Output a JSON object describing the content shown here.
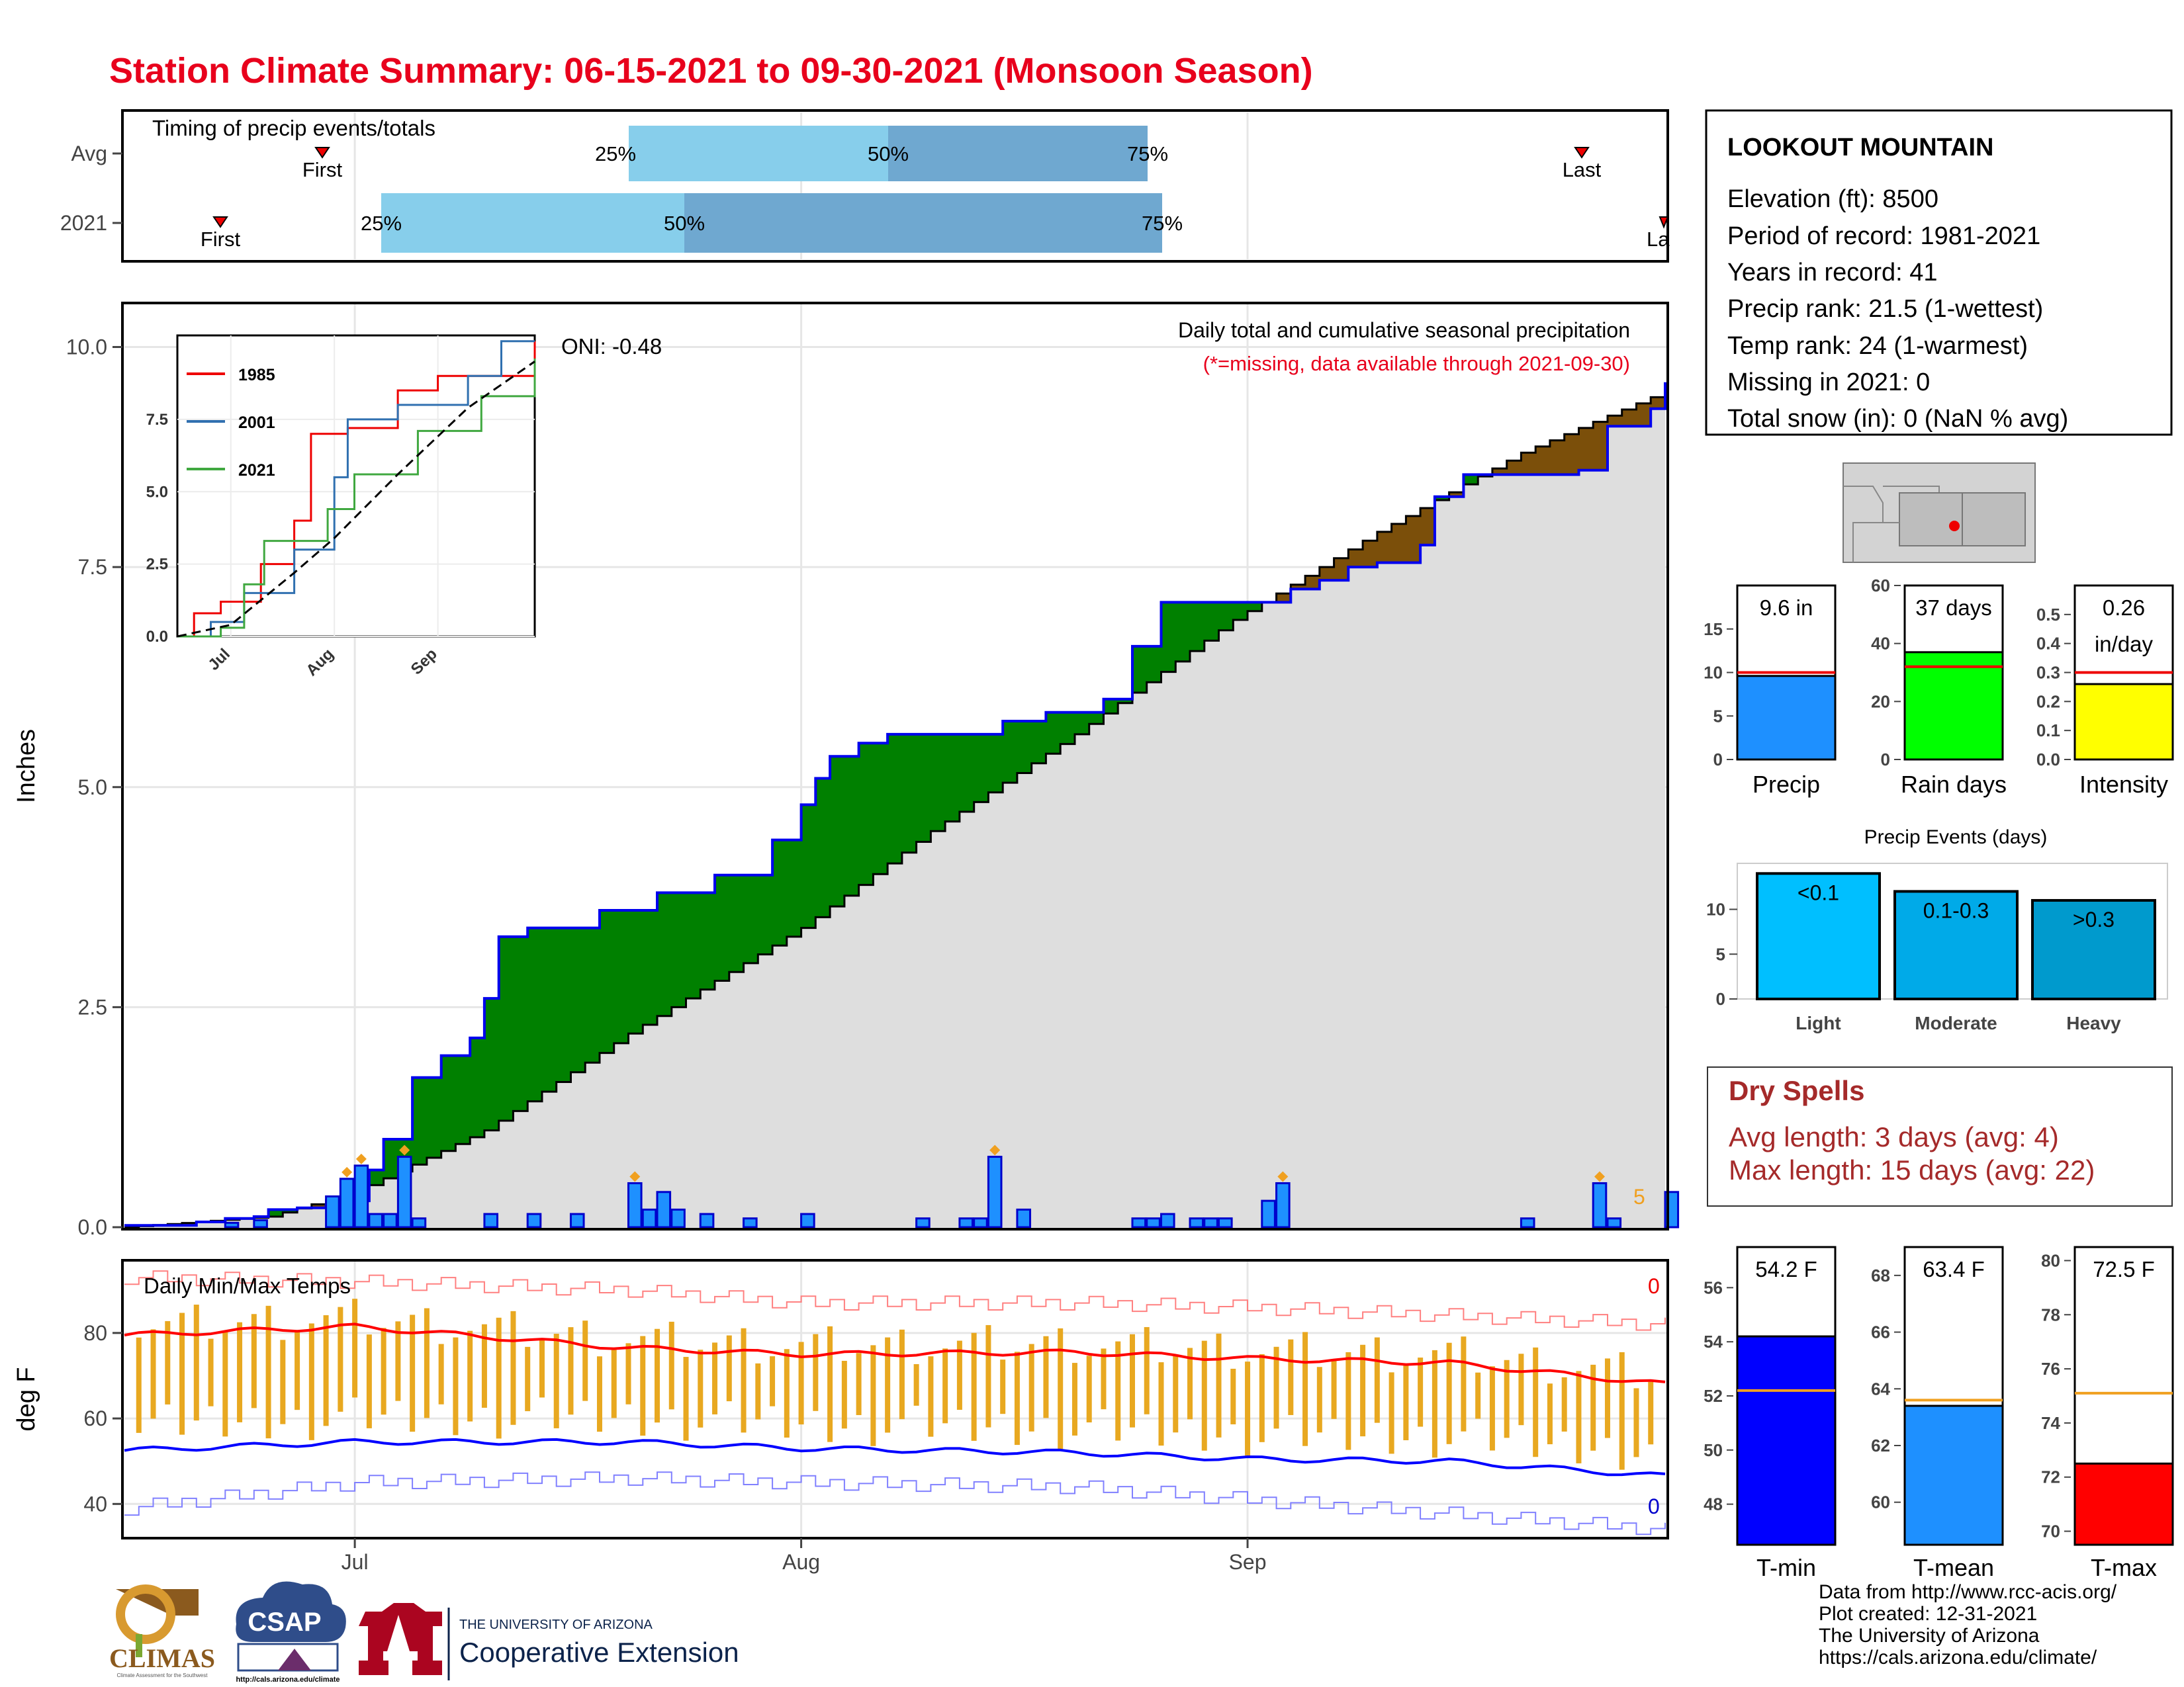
{
  "title": "Station Climate Summary: 06-15-2021 to 09-30-2021 (Monsoon Season)",
  "colors": {
    "title_red": "#e8001c",
    "precip_blue": "#1e90ff",
    "bar_outline": "#0000cc",
    "surplus_green": "#008000",
    "deficit_brown": "#7b4f0a",
    "normal_fill": "#dedede",
    "timing_light": "#87ceeb",
    "timing_dark": "#6fa8d0",
    "tmax_red": "#ff0000",
    "tmin_blue": "#0000ff",
    "temp_range_orange": "#e8a820",
    "dry_spell_text": "#a52a2a"
  },
  "timing": {
    "title": "Timing of precip events/totals",
    "rows": [
      {
        "label": "Avg",
        "first_label": "First",
        "last_label": "Last",
        "p25": "25%",
        "p50": "50%",
        "p75": "75%"
      },
      {
        "label": "2021",
        "first_label": "First",
        "last_label": "La",
        "p25": "25%",
        "p50": "50%",
        "p75": "75%"
      }
    ]
  },
  "main_panel": {
    "ylabel": "Inches",
    "yticks": [
      "0.0",
      "2.5",
      "5.0",
      "7.5",
      "10.0"
    ],
    "subtitle": "Daily total and cumulative seasonal precipitation",
    "missing_note": "(*=missing, data available through 2021-09-30)",
    "oni": "ONI: -0.48",
    "missing_count": "5"
  },
  "inset": {
    "yticks": [
      "0.0",
      "2.5",
      "5.0",
      "7.5"
    ],
    "xticks": [
      "Jul",
      "Aug",
      "Sep"
    ],
    "legend": [
      "1985",
      "2001",
      "2021"
    ]
  },
  "temp_panel": {
    "title": "Daily Min/Max Temps",
    "ylabel": "deg F",
    "yticks": [
      "40",
      "60",
      "80"
    ],
    "count_top": "0",
    "count_bottom": "0",
    "xticks": [
      "Jul",
      "Aug",
      "Sep"
    ]
  },
  "station": {
    "name": "LOOKOUT MOUNTAIN",
    "lines": [
      "Elevation (ft): 8500",
      "Period of record: 1981-2021",
      "Years in record: 41",
      "Precip rank: 21.5 (1-wettest)",
      "Temp rank: 24 (1-warmest)",
      "Missing in 2021: 0",
      "Total snow (in): 0 (NaN % avg)"
    ]
  },
  "summary_bars": [
    {
      "label": "Precip",
      "value_label": "9.6 in",
      "value": 9.6,
      "avg": 10,
      "ymax": 20,
      "yticks": [
        "0",
        "5",
        "10",
        "15"
      ]
    },
    {
      "label": "Rain days",
      "value_label": "37 days",
      "value": 37,
      "avg": 32,
      "ymax": 60,
      "yticks": [
        "0",
        "20",
        "40",
        "60"
      ]
    },
    {
      "label": "Intensity",
      "value_label": "0.26",
      "value_label2": "in/day",
      "value": 0.26,
      "avg": 0.3,
      "ymax": 0.6,
      "yticks": [
        "0.0",
        "0.1",
        "0.2",
        "0.3",
        "0.4",
        "0.5"
      ]
    }
  ],
  "precip_events": {
    "title": "Precip Events (days)",
    "yticks": [
      "0",
      "5",
      "10"
    ],
    "bars": [
      {
        "category": "Light",
        "label": "<0.1",
        "value": 14
      },
      {
        "category": "Moderate",
        "label": "0.1-0.3",
        "value": 12
      },
      {
        "category": "Heavy",
        "label": ">0.3",
        "value": 11
      }
    ]
  },
  "dry_spells": {
    "title": "Dry Spells",
    "avg_length": "Avg length: 3 days (avg: 4)",
    "max_length": "Max length: 15 days (avg: 22)"
  },
  "temp_bars": [
    {
      "label": "T-min",
      "value_label": "54.2 F",
      "value": 54.2,
      "avg": 52.2,
      "ymin": 46.5,
      "ymax": 57.5,
      "yticks": [
        "48",
        "50",
        "52",
        "54",
        "56"
      ]
    },
    {
      "label": "T-mean",
      "value_label": "63.4 F",
      "value": 63.4,
      "avg": 63.6,
      "ymin": 58.5,
      "ymax": 69.0,
      "yticks": [
        "60",
        "62",
        "64",
        "66",
        "68"
      ]
    },
    {
      "label": "T-max",
      "value_label": "72.5 F",
      "value": 72.5,
      "avg": 75.1,
      "ymin": 69.5,
      "ymax": 80.5,
      "yticks": [
        "70",
        "72",
        "74",
        "76",
        "78",
        "80"
      ]
    }
  ],
  "attribution": [
    "Data from http://www.rcc-acis.org/",
    "Plot created: 12-31-2021",
    "The University of Arizona",
    "https://cals.arizona.edu/climate/"
  ],
  "logos": {
    "climas": "CLIMAS",
    "climas_sub": "Climate Assessment for the Southwest",
    "csap": "CSAP",
    "csap_url": "http://cals.arizona.edu/climate",
    "ua_top": "THE UNIVERSITY OF ARIZONA",
    "ua_bottom": "Cooperative Extension"
  },
  "chart_data": [
    {
      "type": "step-area",
      "title": "Daily total and cumulative seasonal precipitation",
      "ylabel": "Inches",
      "x_start": "2021-06-15",
      "x_end": "2021-09-30",
      "ylim": [
        0,
        10.5
      ],
      "series": [
        {
          "name": "cumulative 2021",
          "points": [
            [
              "2021-06-15",
              0.02
            ],
            [
              "2021-06-20",
              0.06
            ],
            [
              "2021-06-22",
              0.1
            ],
            [
              "2021-06-24",
              0.12
            ],
            [
              "2021-06-25",
              0.2
            ],
            [
              "2021-06-27",
              0.22
            ],
            [
              "2021-06-29",
              0.25
            ],
            [
              "2021-07-01",
              0.3
            ],
            [
              "2021-07-02",
              0.65
            ],
            [
              "2021-07-03",
              1.0
            ],
            [
              "2021-07-05",
              1.7
            ],
            [
              "2021-07-07",
              1.95
            ],
            [
              "2021-07-09",
              2.15
            ],
            [
              "2021-07-10",
              2.6
            ],
            [
              "2021-07-11",
              3.3
            ],
            [
              "2021-07-13",
              3.4
            ],
            [
              "2021-07-18",
              3.6
            ],
            [
              "2021-07-22",
              3.8
            ],
            [
              "2021-07-26",
              4.0
            ],
            [
              "2021-07-30",
              4.4
            ],
            [
              "2021-08-01",
              4.8
            ],
            [
              "2021-08-02",
              5.1
            ],
            [
              "2021-08-03",
              5.35
            ],
            [
              "2021-08-05",
              5.5
            ],
            [
              "2021-08-07",
              5.6
            ],
            [
              "2021-08-15",
              5.75
            ],
            [
              "2021-08-18",
              5.85
            ],
            [
              "2021-08-22",
              6.0
            ],
            [
              "2021-08-24",
              6.6
            ],
            [
              "2021-08-26",
              7.1
            ],
            [
              "2021-09-04",
              7.25
            ],
            [
              "2021-09-06",
              7.35
            ],
            [
              "2021-09-08",
              7.5
            ],
            [
              "2021-09-10",
              7.55
            ],
            [
              "2021-09-13",
              7.75
            ],
            [
              "2021-09-14",
              8.3
            ],
            [
              "2021-09-16",
              8.55
            ],
            [
              "2021-09-24",
              8.6
            ],
            [
              "2021-09-26",
              9.1
            ],
            [
              "2021-09-29",
              9.3
            ],
            [
              "2021-09-30",
              9.6
            ]
          ]
        },
        {
          "name": "normal cumulative",
          "points": [
            [
              "2021-06-15",
              0.0
            ],
            [
              "2021-06-25",
              0.12
            ],
            [
              "2021-07-01",
              0.4
            ],
            [
              "2021-07-10",
              1.1
            ],
            [
              "2021-07-20",
              2.2
            ],
            [
              "2021-08-01",
              3.4
            ],
            [
              "2021-08-10",
              4.5
            ],
            [
              "2021-08-20",
              5.6
            ],
            [
              "2021-08-31",
              6.9
            ],
            [
              "2021-09-10",
              7.9
            ],
            [
              "2021-09-20",
              8.8
            ],
            [
              "2021-09-30",
              9.5
            ]
          ]
        }
      ],
      "daily_precip": [
        [
          "2021-06-22",
          0.05
        ],
        [
          "2021-06-24",
          0.08
        ],
        [
          "2021-06-29",
          0.35
        ],
        [
          "2021-06-30",
          0.55
        ],
        [
          "2021-07-01",
          0.7
        ],
        [
          "2021-07-02",
          0.15
        ],
        [
          "2021-07-03",
          0.15
        ],
        [
          "2021-07-04",
          0.8
        ],
        [
          "2021-07-05",
          0.1
        ],
        [
          "2021-07-10",
          0.15
        ],
        [
          "2021-07-13",
          0.15
        ],
        [
          "2021-07-16",
          0.15
        ],
        [
          "2021-07-20",
          0.5
        ],
        [
          "2021-07-21",
          0.2
        ],
        [
          "2021-07-22",
          0.4
        ],
        [
          "2021-07-23",
          0.2
        ],
        [
          "2021-07-25",
          0.15
        ],
        [
          "2021-07-28",
          0.1
        ],
        [
          "2021-08-01",
          0.15
        ],
        [
          "2021-08-09",
          0.1
        ],
        [
          "2021-08-12",
          0.1
        ],
        [
          "2021-08-13",
          0.1
        ],
        [
          "2021-08-14",
          0.8
        ],
        [
          "2021-08-16",
          0.2
        ],
        [
          "2021-08-24",
          0.1
        ],
        [
          "2021-08-25",
          0.1
        ],
        [
          "2021-08-26",
          0.15
        ],
        [
          "2021-08-28",
          0.1
        ],
        [
          "2021-08-29",
          0.1
        ],
        [
          "2021-08-30",
          0.1
        ],
        [
          "2021-09-02",
          0.3
        ],
        [
          "2021-09-03",
          0.5
        ],
        [
          "2021-09-20",
          0.1
        ],
        [
          "2021-09-25",
          0.5
        ],
        [
          "2021-09-26",
          0.1
        ],
        [
          "2021-09-30",
          0.4
        ]
      ]
    },
    {
      "type": "line",
      "title": "Daily Min/Max Temps",
      "ylabel": "deg F",
      "ylim": [
        32,
        97
      ],
      "series": [
        {
          "name": "normal max",
          "points": [
            [
              "2021-06-15",
              79.5
            ],
            [
              "2021-07-01",
              81.5
            ],
            [
              "2021-07-20",
              76.5
            ],
            [
              "2021-08-01",
              75
            ],
            [
              "2021-08-20",
              75.5
            ],
            [
              "2021-09-01",
              74
            ],
            [
              "2021-09-15",
              73
            ],
            [
              "2021-09-30",
              68
            ]
          ]
        },
        {
          "name": "normal min",
          "points": [
            [
              "2021-06-15",
              52.5
            ],
            [
              "2021-07-01",
              54.5
            ],
            [
              "2021-07-20",
              54.5
            ],
            [
              "2021-08-01",
              53
            ],
            [
              "2021-08-20",
              52
            ],
            [
              "2021-09-01",
              50.5
            ],
            [
              "2021-09-15",
              50
            ],
            [
              "2021-09-30",
              46.5
            ]
          ]
        },
        {
          "name": "record max",
          "points": [
            [
              "2021-06-15",
              93
            ],
            [
              "2021-07-01",
              92
            ],
            [
              "2021-07-20",
              90
            ],
            [
              "2021-08-01",
              87
            ],
            [
              "2021-08-20",
              87
            ],
            [
              "2021-09-01",
              86
            ],
            [
              "2021-09-30",
              82
            ]
          ]
        },
        {
          "name": "record min",
          "points": [
            [
              "2021-06-15",
              39
            ],
            [
              "2021-07-01",
              45
            ],
            [
              "2021-07-20",
              46
            ],
            [
              "2021-08-01",
              45
            ],
            [
              "2021-08-20",
              44
            ],
            [
              "2021-09-01",
              41
            ],
            [
              "2021-09-30",
              34
            ]
          ]
        }
      ]
    },
    {
      "type": "line",
      "title": "inset cumulative precip",
      "xticks": [
        "Jul",
        "Aug",
        "Sep"
      ],
      "ylim": [
        0,
        10
      ],
      "series": [
        {
          "name": "1985",
          "points": [
            [
              "2021-06-15",
              0
            ],
            [
              "2021-06-20",
              0.8
            ],
            [
              "2021-06-28",
              1.2
            ],
            [
              "2021-07-10",
              2.5
            ],
            [
              "2021-07-20",
              4.0
            ],
            [
              "2021-07-25",
              7.0
            ],
            [
              "2021-08-05",
              7.2
            ],
            [
              "2021-08-20",
              8.5
            ],
            [
              "2021-09-01",
              9.0
            ],
            [
              "2021-09-30",
              10.2
            ]
          ]
        },
        {
          "name": "2001",
          "points": [
            [
              "2021-06-15",
              0
            ],
            [
              "2021-06-25",
              0.5
            ],
            [
              "2021-07-05",
              1.5
            ],
            [
              "2021-07-20",
              3.0
            ],
            [
              "2021-08-01",
              5.5
            ],
            [
              "2021-08-05",
              7.5
            ],
            [
              "2021-08-20",
              8.0
            ],
            [
              "2021-09-10",
              9.0
            ],
            [
              "2021-09-20",
              10.2
            ],
            [
              "2021-09-30",
              10.2
            ]
          ]
        },
        {
          "name": "2021",
          "points": [
            [
              "2021-06-15",
              0
            ],
            [
              "2021-06-28",
              0.3
            ],
            [
              "2021-07-05",
              1.8
            ],
            [
              "2021-07-11",
              3.3
            ],
            [
              "2021-07-30",
              4.4
            ],
            [
              "2021-08-07",
              5.6
            ],
            [
              "2021-08-26",
              7.1
            ],
            [
              "2021-09-14",
              8.3
            ],
            [
              "2021-09-30",
              9.6
            ]
          ]
        },
        {
          "name": "normal",
          "points": [
            [
              "2021-06-15",
              0
            ],
            [
              "2021-07-01",
              0.4
            ],
            [
              "2021-07-20",
              2.2
            ],
            [
              "2021-08-01",
              3.4
            ],
            [
              "2021-08-20",
              5.6
            ],
            [
              "2021-09-10",
              7.9
            ],
            [
              "2021-09-30",
              9.5
            ]
          ]
        }
      ]
    }
  ]
}
